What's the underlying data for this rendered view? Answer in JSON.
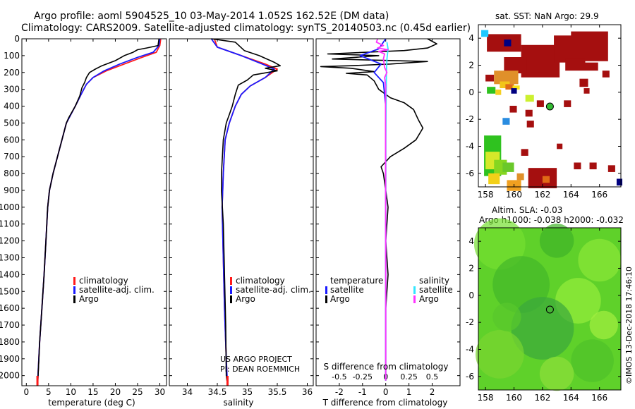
{
  "header": {
    "line1": "Argo profile: aoml 5904525_10 03-May-2014 1.052S 162.52E (DM data)",
    "line2": "Climatology: CARS2009. Satellite-adjusted climatology: synTS_20140503.nc (0.45d earlier)"
  },
  "credit": {
    "project": "US ARGO PROJECT",
    "pi": "PI: DEAN ROEMMICH",
    "watermark": "©IMOS 13-Dec-2018 17:46:10"
  },
  "colors": {
    "climatology": "#ff1a1a",
    "satellite": "#1a1aff",
    "argo": "#000000",
    "sal_satellite": "#33e6ff",
    "sal_argo": "#ff33ff",
    "sst_dark": "#a50f0f",
    "sla_green": "#55cc22"
  },
  "chart_data": [
    {
      "id": "temperature",
      "type": "line",
      "xlabel": "temperature (deg C)",
      "ylabel": "",
      "xlim": [
        -1,
        31.5
      ],
      "ylim": [
        2060,
        0
      ],
      "xticks": [
        0,
        5,
        10,
        15,
        20,
        25,
        30
      ],
      "yticks": [
        0,
        100,
        200,
        300,
        400,
        500,
        600,
        700,
        800,
        900,
        1000,
        1100,
        1200,
        1300,
        1400,
        1500,
        1600,
        1700,
        1800,
        1900,
        2000
      ],
      "legend": [
        "climatology",
        "satellite-adj. clim.",
        "Argo"
      ],
      "series": [
        {
          "name": "climatology",
          "points": [
            [
              30.2,
              0
            ],
            [
              30.0,
              40
            ],
            [
              29.2,
              80
            ],
            [
              26,
              110
            ],
            [
              22,
              150
            ],
            [
              18,
              190
            ],
            [
              15,
              230
            ],
            [
              13.5,
              270
            ],
            [
              12.5,
              320
            ],
            [
              11,
              400
            ],
            [
              9,
              500
            ],
            [
              8,
              600
            ],
            [
              7,
              700
            ],
            [
              6,
              800
            ],
            [
              5.2,
              900
            ],
            [
              4.8,
              1000
            ],
            [
              4.4,
              1200
            ],
            [
              4,
              1400
            ],
            [
              3.5,
              1600
            ],
            [
              3,
              1800
            ],
            [
              2.5,
              2060
            ]
          ]
        },
        {
          "name": "satellite-adj. clim.",
          "points": [
            [
              30.0,
              0
            ],
            [
              29.8,
              40
            ],
            [
              28.5,
              80
            ],
            [
              25,
              110
            ],
            [
              21,
              150
            ],
            [
              17.5,
              190
            ],
            [
              15,
              230
            ],
            [
              13.5,
              270
            ],
            [
              12.5,
              320
            ],
            [
              11,
              400
            ],
            [
              9,
              500
            ],
            [
              8,
              600
            ],
            [
              7,
              700
            ],
            [
              6,
              800
            ],
            [
              5.2,
              900
            ],
            [
              4.8,
              1000
            ],
            [
              4.4,
              1200
            ],
            [
              4,
              1400
            ],
            [
              3.5,
              1600
            ],
            [
              3,
              1800
            ],
            [
              2.5,
              2060
            ]
          ]
        },
        {
          "name": "Argo",
          "points": [
            [
              29.8,
              0
            ],
            [
              29.6,
              40
            ],
            [
              27,
              55
            ],
            [
              25,
              65
            ],
            [
              24,
              80
            ],
            [
              22,
              100
            ],
            [
              20,
              130
            ],
            [
              17,
              160
            ],
            [
              15.5,
              180
            ],
            [
              14.2,
              200
            ],
            [
              13.5,
              230
            ],
            [
              13.1,
              260
            ],
            [
              12.5,
              290
            ],
            [
              12,
              340
            ],
            [
              11,
              400
            ],
            [
              9.5,
              470
            ],
            [
              9,
              500
            ],
            [
              8,
              600
            ],
            [
              7,
              700
            ],
            [
              6,
              800
            ],
            [
              5.2,
              900
            ],
            [
              4.8,
              1000
            ],
            [
              4.4,
              1200
            ],
            [
              4,
              1400
            ],
            [
              3.5,
              1600
            ],
            [
              3,
              1800
            ],
            [
              2.6,
              2030
            ]
          ]
        }
      ]
    },
    {
      "id": "salinity",
      "type": "line",
      "xlabel": "salinity",
      "ylabel": "",
      "xlim": [
        33.7,
        36.1
      ],
      "ylim": [
        2060,
        0
      ],
      "xticks": [
        34,
        34.5,
        35,
        35.5,
        36
      ],
      "legend": [
        "climatology",
        "satellite-adj. clim.",
        "Argo"
      ],
      "series": [
        {
          "name": "climatology",
          "points": [
            [
              34.45,
              0
            ],
            [
              34.5,
              50
            ],
            [
              34.9,
              100
            ],
            [
              35.3,
              150
            ],
            [
              35.5,
              180
            ],
            [
              35.3,
              230
            ],
            [
              35.05,
              280
            ],
            [
              34.9,
              330
            ],
            [
              34.8,
              400
            ],
            [
              34.7,
              500
            ],
            [
              34.63,
              600
            ],
            [
              34.6,
              800
            ],
            [
              34.58,
              1000
            ],
            [
              34.6,
              1300
            ],
            [
              34.62,
              1600
            ],
            [
              34.65,
              1900
            ],
            [
              34.67,
              2060
            ]
          ]
        },
        {
          "name": "satellite-adj. clim.",
          "points": [
            [
              34.4,
              0
            ],
            [
              34.5,
              50
            ],
            [
              34.9,
              100
            ],
            [
              35.25,
              150
            ],
            [
              35.45,
              180
            ],
            [
              35.3,
              230
            ],
            [
              35.05,
              280
            ],
            [
              34.9,
              330
            ],
            [
              34.8,
              400
            ],
            [
              34.7,
              500
            ],
            [
              34.63,
              600
            ],
            [
              34.6,
              800
            ],
            [
              34.58,
              1000
            ],
            [
              34.6,
              1300
            ],
            [
              34.62,
              1600
            ],
            [
              34.65,
              1900
            ],
            [
              34.67,
              2060
            ]
          ]
        },
        {
          "name": "Argo",
          "points": [
            [
              34.4,
              0
            ],
            [
              34.8,
              20
            ],
            [
              34.95,
              70
            ],
            [
              35.2,
              100
            ],
            [
              35.45,
              140
            ],
            [
              35.55,
              160
            ],
            [
              35.3,
              175
            ],
            [
              35.5,
              190
            ],
            [
              35.1,
              215
            ],
            [
              35.0,
              245
            ],
            [
              34.85,
              275
            ],
            [
              34.8,
              330
            ],
            [
              34.75,
              400
            ],
            [
              34.7,
              450
            ],
            [
              34.65,
              500
            ],
            [
              34.6,
              600
            ],
            [
              34.57,
              800
            ],
            [
              34.57,
              900
            ],
            [
              34.6,
              1100
            ],
            [
              34.62,
              1400
            ],
            [
              34.64,
              1700
            ],
            [
              34.65,
              2000
            ],
            [
              34.66,
              2030
            ]
          ]
        }
      ]
    },
    {
      "id": "differences",
      "type": "line",
      "xlabel": "T difference from climatology",
      "top_label": "S difference from climatology",
      "xlim": [
        -3,
        3.2
      ],
      "ylim": [
        2060,
        0
      ],
      "xticks": [
        -2,
        -1,
        0,
        1,
        2
      ],
      "top_xticks": [
        "-0.5",
        "-0.25",
        "0",
        "0.25",
        "0.5"
      ],
      "legend_left_title": "temperature",
      "legend_right_title": "salinity",
      "legend_left": [
        "satellite",
        "Argo"
      ],
      "legend_right": [
        "satellite",
        "Argo"
      ],
      "series": [
        {
          "name": "T Argo",
          "points": [
            [
              1.8,
              0
            ],
            [
              2.2,
              30
            ],
            [
              1.8,
              55
            ],
            [
              0.8,
              70
            ],
            [
              -2.5,
              90
            ],
            [
              -0.3,
              100
            ],
            [
              -2.3,
              120
            ],
            [
              1.8,
              135
            ],
            [
              0.2,
              150
            ],
            [
              -1.5,
              160
            ],
            [
              -2.8,
              165
            ],
            [
              -1.5,
              175
            ],
            [
              -0.5,
              195
            ],
            [
              -1.7,
              205
            ],
            [
              -0.8,
              215
            ],
            [
              -0.5,
              250
            ],
            [
              -0.3,
              300
            ],
            [
              0.2,
              350
            ],
            [
              0.8,
              380
            ],
            [
              1.2,
              420
            ],
            [
              1.4,
              480
            ],
            [
              1.6,
              530
            ],
            [
              1.3,
              600
            ],
            [
              0.8,
              650
            ],
            [
              0.2,
              700
            ],
            [
              -0.2,
              760
            ],
            [
              -0.1,
              800
            ],
            [
              0,
              900
            ],
            [
              0.1,
              1000
            ],
            [
              0,
              1200
            ],
            [
              0.1,
              1400
            ],
            [
              0,
              1600
            ],
            [
              0,
              2030
            ]
          ]
        },
        {
          "name": "T satellite",
          "points": [
            [
              0,
              0
            ],
            [
              -0.3,
              60
            ],
            [
              -1.1,
              100
            ],
            [
              -0.2,
              150
            ],
            [
              -0.5,
              200
            ],
            [
              -0.1,
              260
            ],
            [
              0,
              400
            ],
            [
              0,
              2030
            ]
          ]
        },
        {
          "name": "S satellite",
          "points": [
            [
              0.05,
              20
            ],
            [
              0.1,
              60
            ],
            [
              0.05,
              120
            ],
            [
              0.03,
              200
            ],
            [
              0.02,
              300
            ],
            [
              0,
              600
            ],
            [
              0,
              2030
            ]
          ]
        },
        {
          "name": "S Argo",
          "points": [
            [
              -0.35,
              0
            ],
            [
              -0.4,
              20
            ],
            [
              -0.1,
              40
            ],
            [
              -0.35,
              55
            ],
            [
              0.1,
              65
            ],
            [
              -0.3,
              75
            ],
            [
              -0.05,
              90
            ],
            [
              -0.1,
              120
            ],
            [
              -0.05,
              170
            ],
            [
              0.05,
              200
            ],
            [
              -0.05,
              230
            ],
            [
              0,
              280
            ],
            [
              -0.01,
              400
            ],
            [
              0,
              1400
            ],
            [
              0,
              2030
            ]
          ]
        }
      ]
    },
    {
      "id": "sst_map",
      "type": "heatmap",
      "title": "sat. SST: NaN Argo: 29.9",
      "xlim": [
        157.5,
        167.5
      ],
      "ylim": [
        -7,
        5
      ],
      "xticks": [
        158,
        160,
        162,
        164,
        166
      ],
      "yticks": [
        4,
        2,
        0,
        -2,
        -4,
        -6
      ],
      "float_position": [
        162.52,
        -1.052
      ]
    },
    {
      "id": "sla_map",
      "type": "heatmap",
      "title": "Altim. SLA: -0.03",
      "subtitle": "Argo h1000: -0.038 h2000: -0.032",
      "xlim": [
        157.5,
        167.5
      ],
      "ylim": [
        -7,
        5
      ],
      "xticks": [
        158,
        160,
        162,
        164,
        166
      ],
      "yticks": [
        4,
        2,
        0,
        -2,
        -4,
        -6
      ],
      "float_position": [
        162.52,
        -1.052
      ]
    }
  ]
}
